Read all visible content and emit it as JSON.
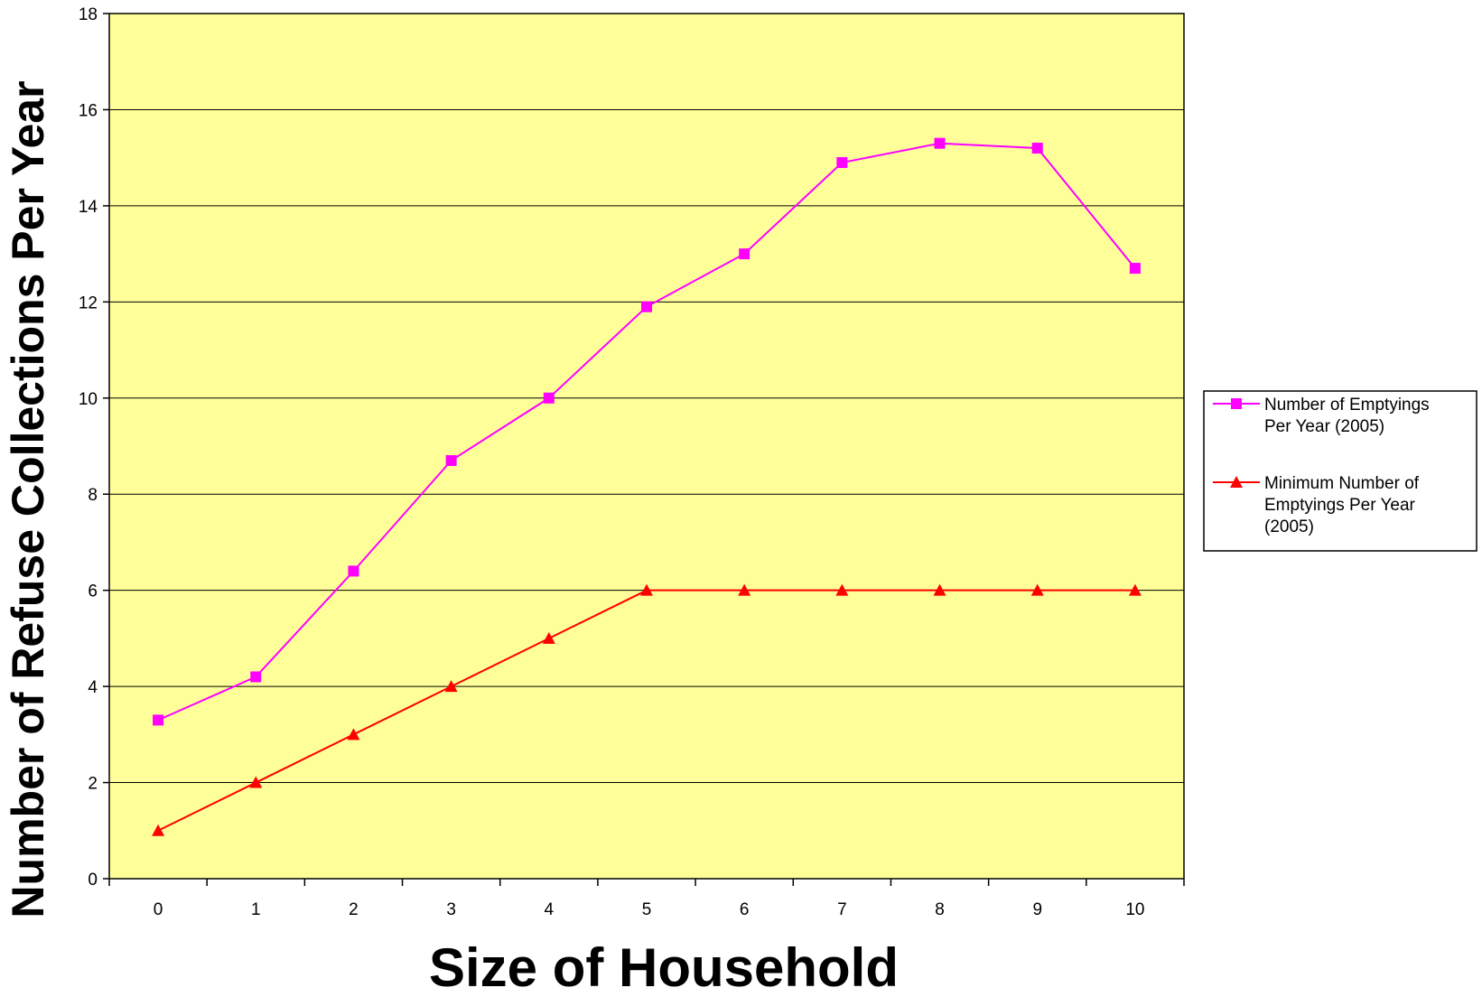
{
  "chart_data": {
    "type": "line",
    "title": "",
    "xlabel": "Size of Household",
    "ylabel": "Number of Refuse Collections Per Year",
    "x": [
      0,
      1,
      2,
      3,
      4,
      5,
      6,
      7,
      8,
      9,
      10
    ],
    "ylim": [
      0,
      18
    ],
    "yticks": [
      0,
      2,
      4,
      6,
      8,
      10,
      12,
      14,
      16,
      18
    ],
    "grid": true,
    "background_color": "#FFFF99",
    "legend_position": "right",
    "series": [
      {
        "name": "Number of Emptyings Per Year (2005)",
        "legend_lines": [
          "Number of Emptyings",
          "Per Year (2005)"
        ],
        "color": "#FF00FF",
        "marker": "square",
        "values": [
          3.3,
          4.2,
          6.4,
          8.7,
          10.0,
          11.9,
          13.0,
          14.9,
          15.3,
          15.2,
          12.7
        ]
      },
      {
        "name": "Minimum Number of Emptyings Per Year (2005)",
        "legend_lines": [
          "Minimum Number of",
          "Emptyings Per Year",
          "(2005)"
        ],
        "color": "#FF0000",
        "marker": "triangle",
        "values": [
          1,
          2,
          3,
          4,
          5,
          6,
          6,
          6,
          6,
          6,
          6
        ]
      }
    ]
  }
}
